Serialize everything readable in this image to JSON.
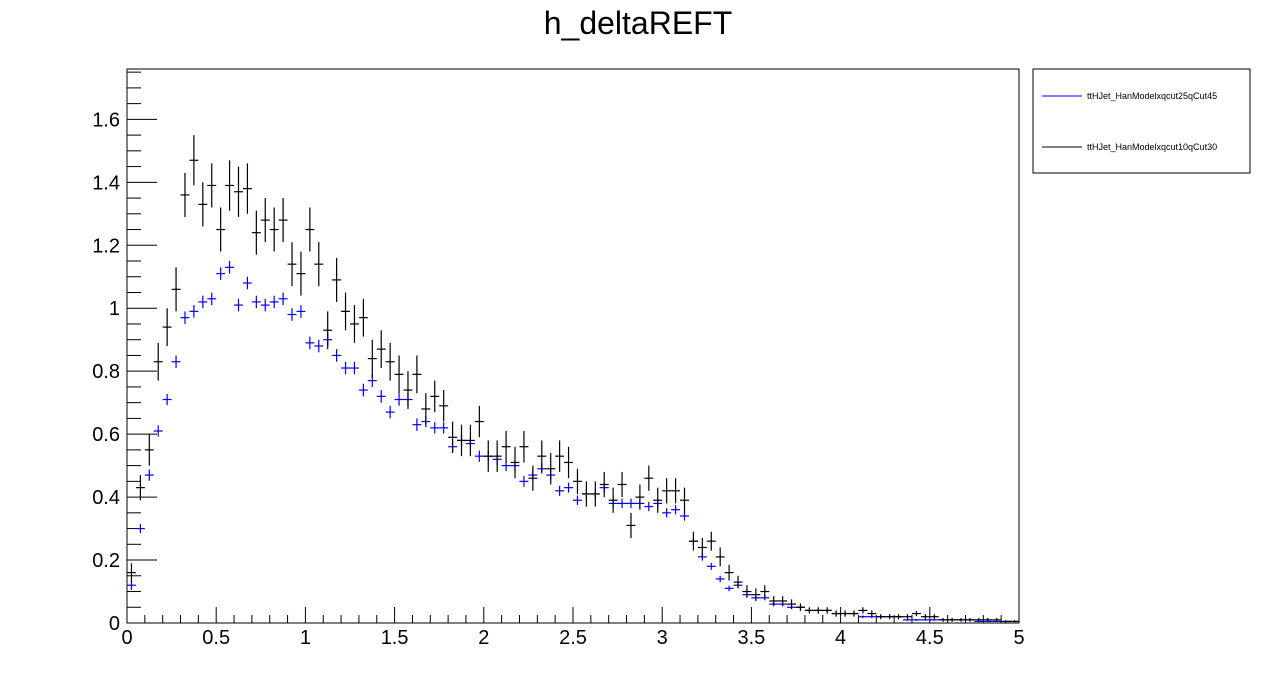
{
  "chart_data": {
    "type": "scatter",
    "title": "h_deltaREFT",
    "xlabel": "",
    "ylabel": "",
    "xlim": [
      0,
      5
    ],
    "ylim": [
      0,
      1.76
    ],
    "grid": false,
    "legend_position": "top-right",
    "x_ticks": [
      "0",
      "0.5",
      "1",
      "1.5",
      "2",
      "2.5",
      "3",
      "3.5",
      "4",
      "4.5",
      "5"
    ],
    "y_ticks": [
      "0",
      "0.2",
      "0.4",
      "0.6",
      "0.8",
      "1",
      "1.2",
      "1.4",
      "1.6"
    ],
    "x_tick_values": [
      0,
      0.5,
      1,
      1.5,
      2,
      2.5,
      3,
      3.5,
      4,
      4.5,
      5
    ],
    "y_tick_values": [
      0,
      0.2,
      0.4,
      0.6,
      0.8,
      1,
      1.2,
      1.4,
      1.6
    ],
    "bin_width": 0.05,
    "x": [
      0.025,
      0.075,
      0.125,
      0.175,
      0.225,
      0.275,
      0.325,
      0.375,
      0.425,
      0.475,
      0.525,
      0.575,
      0.625,
      0.675,
      0.725,
      0.775,
      0.825,
      0.875,
      0.925,
      0.975,
      1.025,
      1.075,
      1.125,
      1.175,
      1.225,
      1.275,
      1.325,
      1.375,
      1.425,
      1.475,
      1.525,
      1.575,
      1.625,
      1.675,
      1.725,
      1.775,
      1.825,
      1.875,
      1.925,
      1.975,
      2.025,
      2.075,
      2.125,
      2.175,
      2.225,
      2.275,
      2.325,
      2.375,
      2.425,
      2.475,
      2.525,
      2.575,
      2.625,
      2.675,
      2.725,
      2.775,
      2.825,
      2.875,
      2.925,
      2.975,
      3.025,
      3.075,
      3.125,
      3.175,
      3.225,
      3.275,
      3.325,
      3.375,
      3.425,
      3.475,
      3.525,
      3.575,
      3.625,
      3.675,
      3.725,
      3.775,
      3.825,
      3.875,
      3.925,
      3.975,
      4.025,
      4.075,
      4.125,
      4.175,
      4.225,
      4.275,
      4.325,
      4.375,
      4.425,
      4.475,
      4.525,
      4.575,
      4.625,
      4.675,
      4.725,
      4.775,
      4.825,
      4.875,
      4.925,
      4.975
    ],
    "series": [
      {
        "name": "ttHJet_HanModelxqcut25qCut45",
        "color": "#0000ff",
        "y": [
          0.12,
          0.3,
          0.47,
          0.61,
          0.71,
          0.83,
          0.97,
          0.99,
          1.02,
          1.03,
          1.11,
          1.13,
          1.01,
          1.08,
          1.02,
          1.01,
          1.02,
          1.03,
          0.98,
          0.99,
          0.89,
          0.88,
          0.9,
          0.85,
          0.81,
          0.81,
          0.74,
          0.77,
          0.72,
          0.67,
          0.71,
          0.71,
          0.63,
          0.64,
          0.62,
          0.62,
          0.56,
          0.58,
          0.57,
          0.53,
          0.53,
          0.52,
          0.5,
          0.5,
          0.45,
          0.47,
          0.49,
          0.47,
          0.42,
          0.43,
          0.39,
          0.41,
          0.41,
          0.43,
          0.38,
          0.38,
          0.38,
          0.38,
          0.37,
          0.38,
          0.35,
          0.36,
          0.34,
          0.26,
          0.21,
          0.18,
          0.14,
          0.11,
          0.12,
          0.09,
          0.08,
          0.08,
          0.06,
          0.06,
          0.05,
          0.05,
          0.04,
          0.04,
          0.04,
          0.03,
          0.03,
          0.03,
          0.02,
          0.02,
          0.02,
          0.02,
          0.02,
          0.01,
          0.01,
          0.01,
          0.01,
          0.01,
          0.01,
          0.01,
          0.01,
          0.005,
          0.005,
          0.005,
          0.005,
          0.005
        ],
        "err": [
          0.015,
          0.015,
          0.018,
          0.018,
          0.018,
          0.02,
          0.02,
          0.02,
          0.02,
          0.02,
          0.02,
          0.02,
          0.02,
          0.02,
          0.02,
          0.02,
          0.02,
          0.02,
          0.02,
          0.02,
          0.02,
          0.02,
          0.02,
          0.02,
          0.02,
          0.02,
          0.02,
          0.02,
          0.02,
          0.02,
          0.02,
          0.02,
          0.02,
          0.018,
          0.018,
          0.018,
          0.018,
          0.018,
          0.018,
          0.018,
          0.017,
          0.017,
          0.017,
          0.017,
          0.017,
          0.016,
          0.016,
          0.016,
          0.016,
          0.016,
          0.015,
          0.015,
          0.015,
          0.015,
          0.015,
          0.015,
          0.015,
          0.015,
          0.015,
          0.015,
          0.015,
          0.015,
          0.015,
          0.013,
          0.012,
          0.011,
          0.01,
          0.009,
          0.009,
          0.008,
          0.008,
          0.008,
          0.007,
          0.007,
          0.006,
          0.006,
          0.005,
          0.005,
          0.005,
          0.005,
          0.005,
          0.005,
          0.004,
          0.004,
          0.004,
          0.004,
          0.004,
          0.003,
          0.003,
          0.003,
          0.003,
          0.003,
          0.003,
          0.003,
          0.003,
          0.002,
          0.002,
          0.002,
          0.002,
          0.002
        ]
      },
      {
        "name": "ttHJet_HanModelxqcut10qCut30",
        "color": "#000000",
        "y": [
          0.16,
          0.43,
          0.55,
          0.83,
          0.94,
          1.06,
          1.36,
          1.47,
          1.33,
          1.39,
          1.25,
          1.39,
          1.37,
          1.38,
          1.24,
          1.28,
          1.25,
          1.28,
          1.14,
          1.11,
          1.25,
          1.14,
          0.93,
          1.09,
          0.99,
          0.95,
          0.97,
          0.84,
          0.87,
          0.83,
          0.79,
          0.74,
          0.79,
          0.68,
          0.72,
          0.69,
          0.59,
          0.58,
          0.58,
          0.64,
          0.53,
          0.53,
          0.56,
          0.51,
          0.56,
          0.46,
          0.53,
          0.49,
          0.53,
          0.51,
          0.45,
          0.41,
          0.41,
          0.44,
          0.39,
          0.44,
          0.31,
          0.4,
          0.46,
          0.39,
          0.42,
          0.42,
          0.39,
          0.26,
          0.24,
          0.26,
          0.21,
          0.16,
          0.13,
          0.1,
          0.09,
          0.1,
          0.07,
          0.07,
          0.06,
          0.05,
          0.04,
          0.04,
          0.04,
          0.03,
          0.03,
          0.03,
          0.04,
          0.03,
          0.02,
          0.02,
          0.02,
          0.02,
          0.03,
          0.02,
          0.02,
          0.01,
          0.01,
          0.01,
          0.01,
          0.01,
          0.01,
          0.01,
          0.005,
          0.005
        ],
        "err": [
          0.03,
          0.04,
          0.05,
          0.06,
          0.06,
          0.07,
          0.07,
          0.08,
          0.07,
          0.07,
          0.07,
          0.08,
          0.08,
          0.08,
          0.07,
          0.07,
          0.07,
          0.07,
          0.07,
          0.07,
          0.07,
          0.07,
          0.06,
          0.07,
          0.06,
          0.06,
          0.06,
          0.06,
          0.06,
          0.06,
          0.06,
          0.06,
          0.06,
          0.05,
          0.05,
          0.05,
          0.05,
          0.05,
          0.05,
          0.05,
          0.05,
          0.05,
          0.05,
          0.05,
          0.05,
          0.04,
          0.05,
          0.05,
          0.05,
          0.05,
          0.04,
          0.04,
          0.04,
          0.04,
          0.04,
          0.04,
          0.04,
          0.04,
          0.04,
          0.04,
          0.04,
          0.04,
          0.04,
          0.03,
          0.03,
          0.03,
          0.03,
          0.025,
          0.02,
          0.02,
          0.02,
          0.02,
          0.015,
          0.015,
          0.015,
          0.012,
          0.01,
          0.01,
          0.01,
          0.01,
          0.01,
          0.01,
          0.01,
          0.01,
          0.008,
          0.008,
          0.008,
          0.008,
          0.008,
          0.008,
          0.008,
          0.006,
          0.006,
          0.006,
          0.006,
          0.006,
          0.006,
          0.006,
          0.004,
          0.004
        ]
      }
    ]
  }
}
